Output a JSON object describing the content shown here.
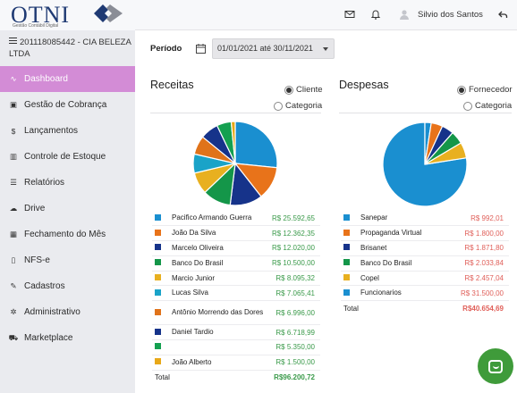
{
  "brand": {
    "logo_text": "OTNI",
    "logo_sub": "Gestão Contábil Digital"
  },
  "sidebar": {
    "company": "201118085442 - CIA BELEZA LTDA",
    "items": [
      {
        "label": "Dashboard",
        "icon": "chart-line-icon",
        "glyph": "∿",
        "active": true
      },
      {
        "label": "Gestão de Cobrança",
        "icon": "money-bill-icon",
        "glyph": "▣",
        "active": false
      },
      {
        "label": "Lançamentos",
        "icon": "dollar-icon",
        "glyph": "$",
        "active": false
      },
      {
        "label": "Controle de Estoque",
        "icon": "bar-chart-icon",
        "glyph": "▥",
        "active": false
      },
      {
        "label": "Relatórios",
        "icon": "list-icon",
        "glyph": "☰",
        "active": false
      },
      {
        "label": "Drive",
        "icon": "cloud-upload-icon",
        "glyph": "☁",
        "active": false
      },
      {
        "label": "Fechamento do Mês",
        "icon": "calendar-icon",
        "glyph": "▦",
        "active": false
      },
      {
        "label": "NFS-e",
        "icon": "file-icon",
        "glyph": "▯",
        "active": false
      },
      {
        "label": "Cadastros",
        "icon": "edit-icon",
        "glyph": "✎",
        "active": false
      },
      {
        "label": "Administrativo",
        "icon": "gear-icon",
        "glyph": "✲",
        "active": false
      },
      {
        "label": "Marketplace",
        "icon": "cart-icon",
        "glyph": "⛟",
        "active": false
      }
    ]
  },
  "topbar": {
    "user_name": "Silvio dos Santos"
  },
  "period": {
    "label": "Período",
    "value": "01/01/2021 até 30/11/2021"
  },
  "receitas": {
    "title": "Receitas",
    "options": [
      "Cliente",
      "Categoria"
    ],
    "selected": "Cliente",
    "rows": [
      {
        "name": "Pacifico Armando Guerra",
        "value": "R$ 25.592,65"
      },
      {
        "name": "João Da Silva",
        "value": "R$ 12.362,35"
      },
      {
        "name": "Marcelo Oliveira",
        "value": "R$ 12.020,00"
      },
      {
        "name": "Banco Do Brasil",
        "value": "R$ 10.500,00"
      },
      {
        "name": "Marcio Junior",
        "value": "R$ 8.095,32"
      },
      {
        "name": "Lucas Silva",
        "value": "R$ 7.065,41"
      },
      {
        "name": "Antônio Morrendo das Dores",
        "value": "R$ 6.996,00"
      },
      {
        "name": "Daniel Tardio",
        "value": "R$ 6.718,99"
      },
      {
        "name": "",
        "value": "R$ 5.350,00"
      },
      {
        "name": "João Alberto",
        "value": "R$ 1.500,00"
      }
    ],
    "total_label": "Total",
    "total_value": "R$96.200,72",
    "value_color": "#3a9a4a"
  },
  "despesas": {
    "title": "Despesas",
    "options": [
      "Fornecedor",
      "Categoria"
    ],
    "selected": "Fornecedor",
    "rows": [
      {
        "name": "Sanepar",
        "value": "R$ 992,01"
      },
      {
        "name": "Propaganda Virtual",
        "value": "R$ 1.800,00"
      },
      {
        "name": "Brisanet",
        "value": "R$ 1.871,80"
      },
      {
        "name": "Banco Do Brasil",
        "value": "R$ 2.033,84"
      },
      {
        "name": "Copel",
        "value": "R$ 2.457,04"
      },
      {
        "name": "Funcionarios",
        "value": "R$ 31.500,00"
      }
    ],
    "total_label": "Total",
    "total_value": "R$40.654,69",
    "value_color": "#e0605a"
  },
  "colors": {
    "receitas": [
      "#1a8fd0",
      "#e8731a",
      "#16338a",
      "#149649",
      "#e8b020",
      "#1aa3c8",
      "#e0731a",
      "#16338a",
      "#14a050",
      "#e8a818"
    ],
    "despesas": [
      "#1a8fd0",
      "#e8731a",
      "#16338a",
      "#149649",
      "#e8b020",
      "#1a8fd0"
    ]
  },
  "chart_data": [
    {
      "type": "pie",
      "title": "Receitas",
      "categories": [
        "Pacifico Armando Guerra",
        "João Da Silva",
        "Marcelo Oliveira",
        "Banco Do Brasil",
        "Marcio Junior",
        "Lucas Silva",
        "Antônio Morrendo das Dores",
        "Daniel Tardio",
        "",
        "João Alberto"
      ],
      "values": [
        25592.65,
        12362.35,
        12020.0,
        10500.0,
        8095.32,
        7065.41,
        6996.0,
        6718.99,
        5350.0,
        1500.0
      ]
    },
    {
      "type": "pie",
      "title": "Despesas",
      "categories": [
        "Funcionarios",
        "Sanepar",
        "Propaganda Virtual",
        "Brisanet",
        "Banco Do Brasil",
        "Copel"
      ],
      "values": [
        31500.0,
        992.01,
        1800.0,
        1871.8,
        2033.84,
        2457.04
      ]
    }
  ]
}
